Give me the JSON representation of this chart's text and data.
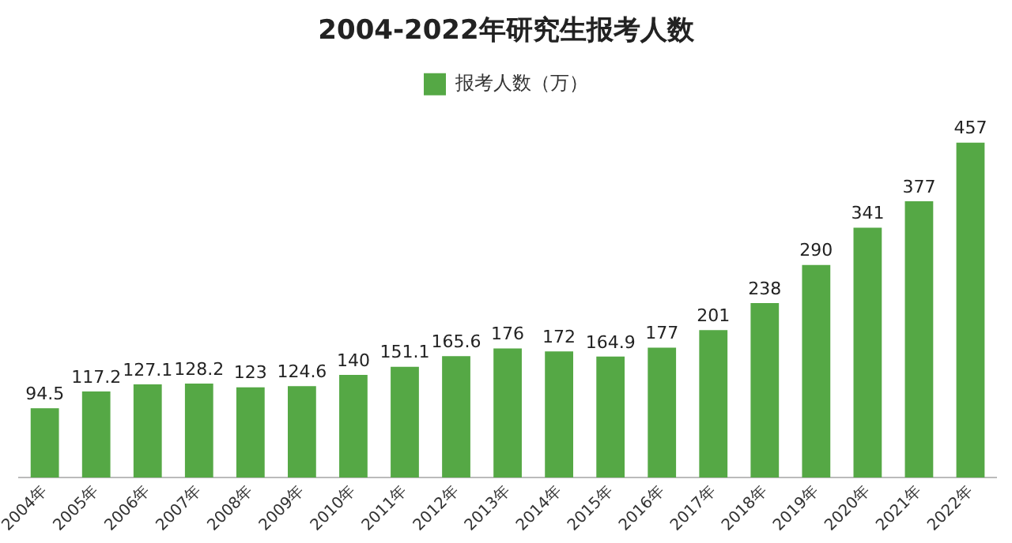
{
  "chart_data": {
    "type": "bar",
    "title": "2004-2022年研究生报考人数",
    "categories": [
      "2004年",
      "2005年",
      "2006年",
      "2007年",
      "2008年",
      "2009年",
      "2010年",
      "2011年",
      "2012年",
      "2013年",
      "2014年",
      "2015年",
      "2016年",
      "2017年",
      "2018年",
      "2019年",
      "2020年",
      "2021年",
      "2022年"
    ],
    "series": [
      {
        "name": "报考人数（万）",
        "color": "#55a845",
        "values": [
          94.5,
          117.2,
          127.1,
          128.2,
          123,
          124.6,
          140,
          151.1,
          165.6,
          176,
          172,
          164.9,
          177,
          201,
          238,
          290,
          341,
          377,
          457
        ]
      }
    ],
    "legend": "top",
    "data_labels": true,
    "grid": false
  }
}
